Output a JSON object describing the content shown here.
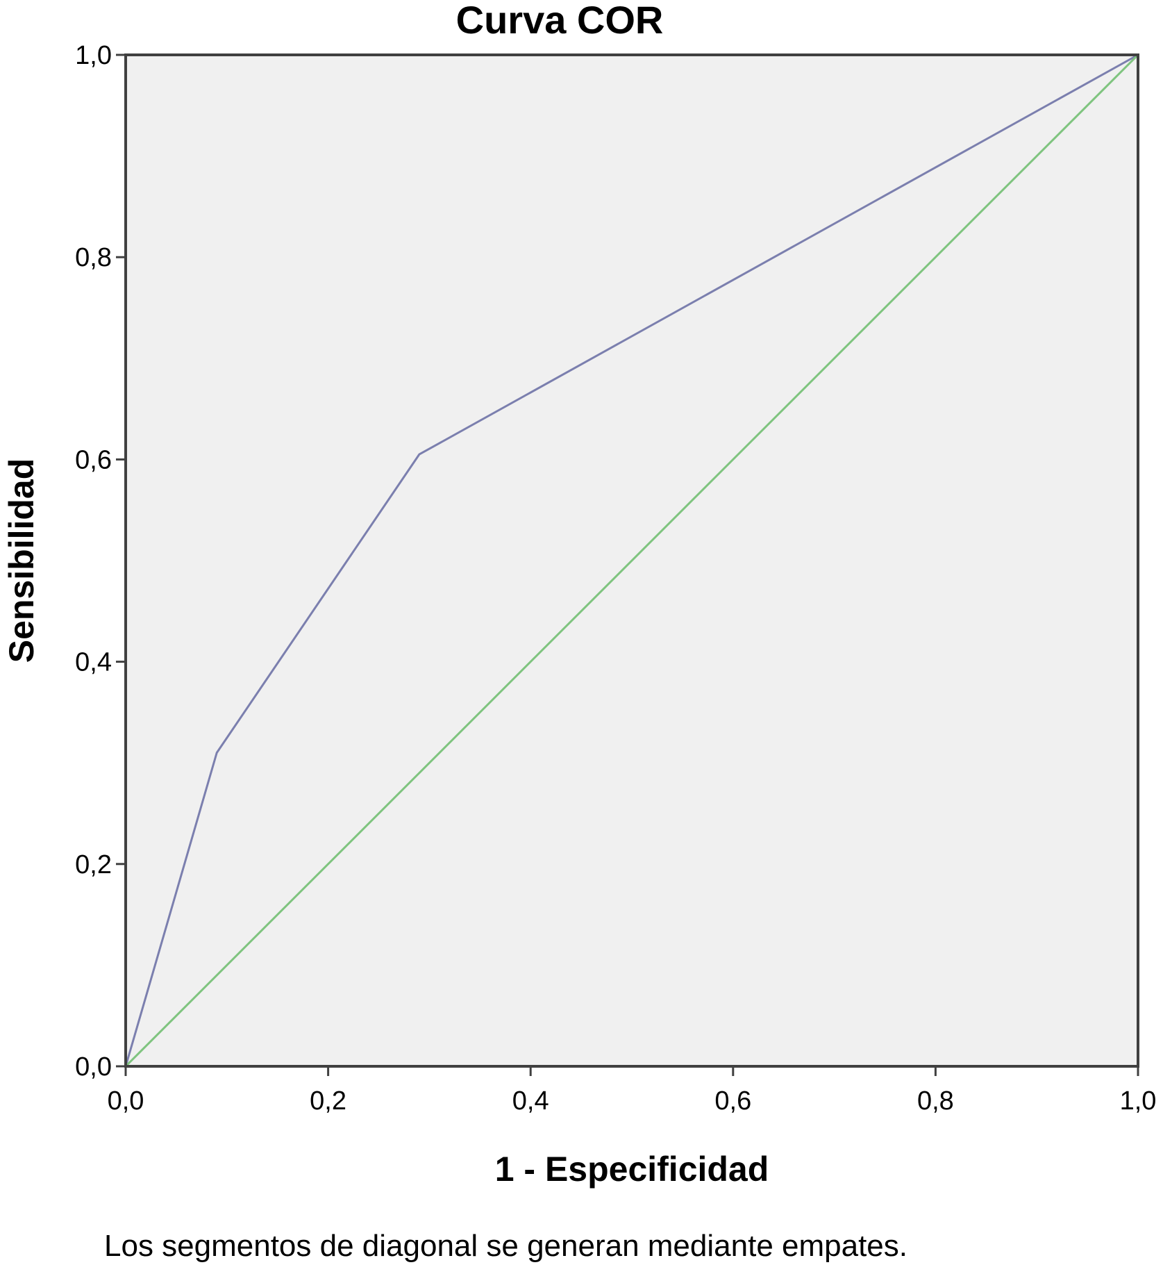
{
  "chart_data": {
    "type": "line",
    "title": "Curva COR",
    "xlabel": "1 - Especificidad",
    "ylabel": "Sensibilidad",
    "footnote": "Los segmentos de diagonal se generan mediante empates.",
    "xlim": [
      0,
      1
    ],
    "ylim": [
      0,
      1
    ],
    "x_ticks": [
      "0,0",
      "0,2",
      "0,4",
      "0,6",
      "0,8",
      "1,0"
    ],
    "y_ticks": [
      "0,0",
      "0,2",
      "0,4",
      "0,6",
      "0,8",
      "1,0"
    ],
    "legend": "none",
    "grid": false,
    "background_color": "#f0f0f0",
    "series": [
      {
        "color": "#7b7fae",
        "x": [
          0.0,
          0.09,
          0.29,
          1.0
        ],
        "y": [
          0.0,
          0.31,
          0.605,
          1.0
        ]
      },
      {
        "color": "#7fc47f",
        "x": [
          0.0,
          1.0
        ],
        "y": [
          0.0,
          1.0
        ]
      }
    ]
  }
}
